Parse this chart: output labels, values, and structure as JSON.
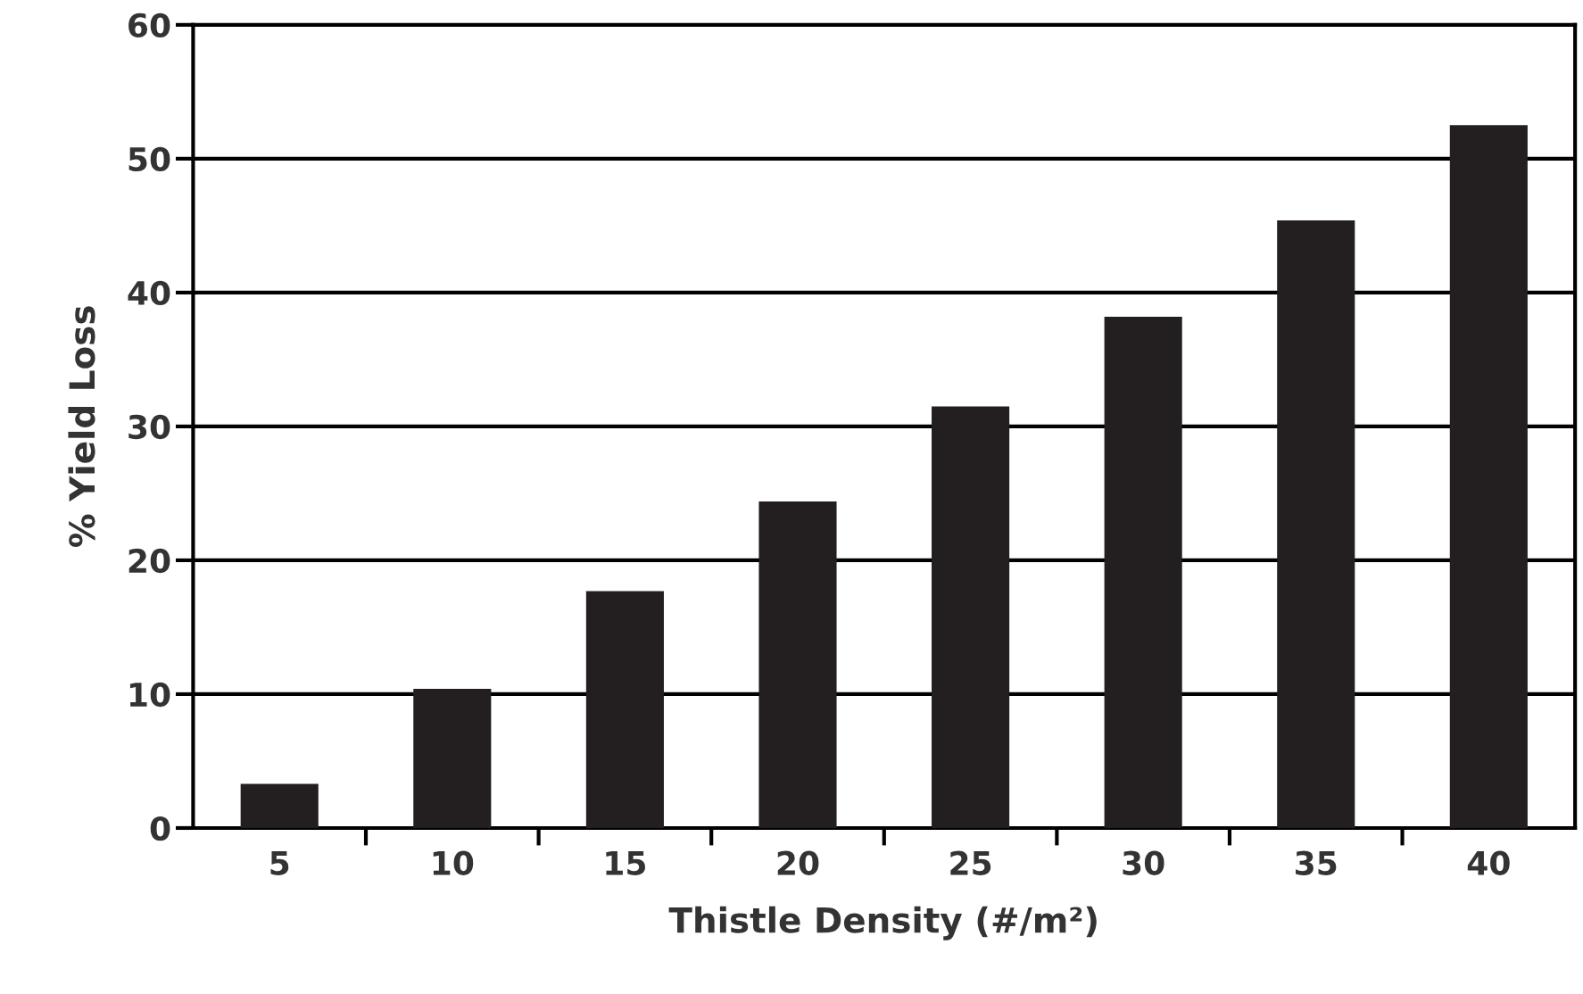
{
  "chart_data": {
    "type": "bar",
    "xlabel": "Thistle Density (#/m²)",
    "ylabel": "% Yield Loss",
    "categories": [
      "5",
      "10",
      "15",
      "20",
      "25",
      "30",
      "35",
      "40"
    ],
    "values": [
      3.3,
      10.4,
      17.7,
      24.4,
      31.5,
      38.2,
      45.4,
      52.5
    ],
    "color": "#231f20",
    "ylim": [
      0,
      60
    ],
    "yticks": [
      0,
      10,
      20,
      30,
      40,
      50,
      60
    ],
    "grid": "y",
    "legend": false
  }
}
